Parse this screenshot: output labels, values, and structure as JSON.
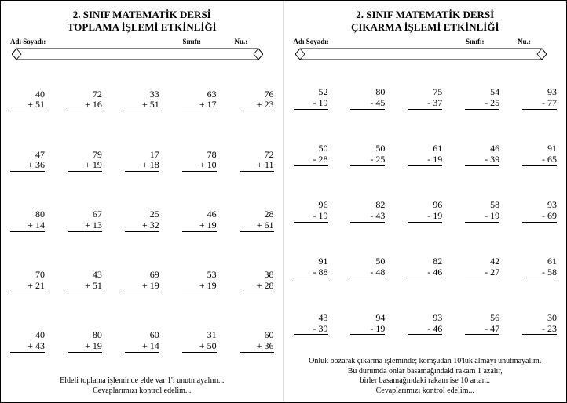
{
  "sheets": [
    {
      "title_line1": "2. SINIF MATEMATİK DERSİ",
      "title_line2": "TOPLAMA İŞLEMİ ETKİNLİĞİ",
      "label_name": "Adı Soyadı:",
      "label_class": "Sınıfı:",
      "label_no": "Nu.:",
      "operator": "+",
      "problems": [
        [
          {
            "a": 40,
            "b": 51
          },
          {
            "a": 72,
            "b": 16
          },
          {
            "a": 33,
            "b": 51
          },
          {
            "a": 63,
            "b": 17
          },
          {
            "a": 76,
            "b": 23
          }
        ],
        [
          {
            "a": 47,
            "b": 36
          },
          {
            "a": 79,
            "b": 19
          },
          {
            "a": 17,
            "b": 18
          },
          {
            "a": 78,
            "b": 10
          },
          {
            "a": 72,
            "b": 11
          }
        ],
        [
          {
            "a": 80,
            "b": 14
          },
          {
            "a": 67,
            "b": 13
          },
          {
            "a": 25,
            "b": 32
          },
          {
            "a": 46,
            "b": 19
          },
          {
            "a": 28,
            "b": 61
          }
        ],
        [
          {
            "a": 70,
            "b": 21
          },
          {
            "a": 43,
            "b": 51
          },
          {
            "a": 69,
            "b": 19
          },
          {
            "a": 53,
            "b": 19
          },
          {
            "a": 38,
            "b": 28
          }
        ],
        [
          {
            "a": 40,
            "b": 43
          },
          {
            "a": 80,
            "b": 19
          },
          {
            "a": 60,
            "b": 14
          },
          {
            "a": 31,
            "b": 50
          },
          {
            "a": 60,
            "b": 36
          }
        ]
      ],
      "footer": [
        "Eldeli toplama işleminde elde var 1'i unutmayalım...",
        "Cevaplarımızı kontrol edelim..."
      ]
    },
    {
      "title_line1": "2. SINIF MATEMATİK DERSİ",
      "title_line2": "ÇIKARMA İŞLEMİ ETKİNLİĞİ",
      "label_name": "Adı Soyadı:",
      "label_class": "Sınıfı:",
      "label_no": "Nu.:",
      "operator": "-",
      "problems": [
        [
          {
            "a": 52,
            "b": 19
          },
          {
            "a": 80,
            "b": 45
          },
          {
            "a": 75,
            "b": 37
          },
          {
            "a": 54,
            "b": 25
          },
          {
            "a": 93,
            "b": 77
          }
        ],
        [
          {
            "a": 50,
            "b": 28
          },
          {
            "a": 50,
            "b": 25
          },
          {
            "a": 61,
            "b": 19
          },
          {
            "a": 46,
            "b": 39
          },
          {
            "a": 91,
            "b": 65
          }
        ],
        [
          {
            "a": 96,
            "b": 19
          },
          {
            "a": 82,
            "b": 43
          },
          {
            "a": 96,
            "b": 19
          },
          {
            "a": 58,
            "b": 19
          },
          {
            "a": 93,
            "b": 69
          }
        ],
        [
          {
            "a": 91,
            "b": 88
          },
          {
            "a": 50,
            "b": 48
          },
          {
            "a": 82,
            "b": 46
          },
          {
            "a": 42,
            "b": 27
          },
          {
            "a": 61,
            "b": 58
          }
        ],
        [
          {
            "a": 43,
            "b": 39
          },
          {
            "a": 94,
            "b": 19
          },
          {
            "a": 93,
            "b": 46
          },
          {
            "a": 56,
            "b": 47
          },
          {
            "a": 30,
            "b": 23
          }
        ]
      ],
      "footer": [
        "Onluk bozarak çıkarma işleminde; komşudan 10'luk almayı unutmayalım.",
        "Bu durumda onlar basamağındaki rakam 1 azalır,",
        "birler basamağındaki rakam ise 10 artar...",
        "Cevaplarımızı kontrol edelim..."
      ]
    }
  ],
  "colors": {
    "text": "#000000",
    "background": "#ffffff",
    "divider": "#dddddd"
  }
}
